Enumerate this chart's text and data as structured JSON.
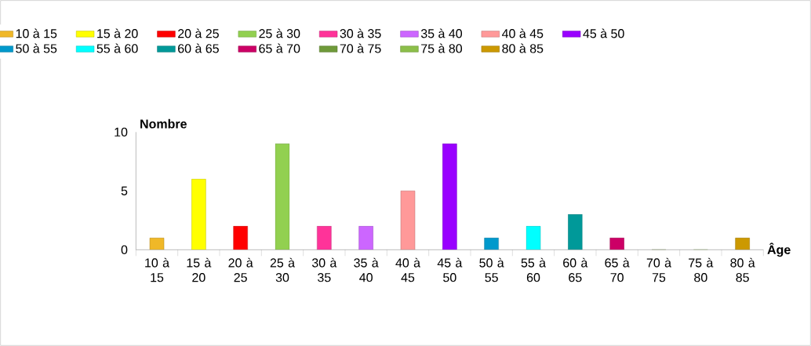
{
  "chart_data": {
    "type": "bar",
    "xlabel": "Âge",
    "ylabel": "Nombre",
    "categories": [
      "10 à 15",
      "15 à 20",
      "20 à 25",
      "25 à 30",
      "30 à 35",
      "35 à 40",
      "40 à 45",
      "45 à 50",
      "50 à 55",
      "55 à 60",
      "60 à 65",
      "65 à 70",
      "70 à 75",
      "75 à 80",
      "80 à 85"
    ],
    "series": [
      {
        "name": "10 à 15",
        "color": "#f0b828",
        "values": [
          1,
          null,
          null,
          null,
          null,
          null,
          null,
          null,
          null,
          null,
          null,
          null,
          null,
          null,
          null
        ]
      },
      {
        "name": "15 à 20",
        "color": "#ffff00",
        "values": [
          null,
          6,
          null,
          null,
          null,
          null,
          null,
          null,
          null,
          null,
          null,
          null,
          null,
          null,
          null
        ]
      },
      {
        "name": "20 à 25",
        "color": "#ff0000",
        "values": [
          null,
          null,
          2,
          null,
          null,
          null,
          null,
          null,
          null,
          null,
          null,
          null,
          null,
          null,
          null
        ]
      },
      {
        "name": "25 à 30",
        "color": "#92d050",
        "values": [
          null,
          null,
          null,
          9,
          null,
          null,
          null,
          null,
          null,
          null,
          null,
          null,
          null,
          null,
          null
        ]
      },
      {
        "name": "30 à 35",
        "color": "#ff3399",
        "values": [
          null,
          null,
          null,
          null,
          2,
          null,
          null,
          null,
          null,
          null,
          null,
          null,
          null,
          null,
          null
        ]
      },
      {
        "name": "35 à 40",
        "color": "#cc66ff",
        "values": [
          null,
          null,
          null,
          null,
          null,
          2,
          null,
          null,
          null,
          null,
          null,
          null,
          null,
          null,
          null
        ]
      },
      {
        "name": "40 à 45",
        "color": "#ff9999",
        "values": [
          null,
          null,
          null,
          null,
          null,
          null,
          5,
          null,
          null,
          null,
          null,
          null,
          null,
          null,
          null
        ]
      },
      {
        "name": "45 à 50",
        "color": "#9900ff",
        "values": [
          null,
          null,
          null,
          null,
          null,
          null,
          null,
          9,
          null,
          null,
          null,
          null,
          null,
          null,
          null
        ]
      },
      {
        "name": "50 à 55",
        "color": "#0099cc",
        "values": [
          null,
          null,
          null,
          null,
          null,
          null,
          null,
          null,
          1,
          null,
          null,
          null,
          null,
          null,
          null
        ]
      },
      {
        "name": "55 à 60",
        "color": "#00ffff",
        "values": [
          null,
          null,
          null,
          null,
          null,
          null,
          null,
          null,
          null,
          2,
          null,
          null,
          null,
          null,
          null
        ]
      },
      {
        "name": "60 à 65",
        "color": "#009999",
        "values": [
          null,
          null,
          null,
          null,
          null,
          null,
          null,
          null,
          null,
          null,
          3,
          null,
          null,
          null,
          null
        ]
      },
      {
        "name": "65 à 70",
        "color": "#cc0066",
        "values": [
          null,
          null,
          null,
          null,
          null,
          null,
          null,
          null,
          null,
          null,
          null,
          1,
          null,
          null,
          null
        ]
      },
      {
        "name": "70 à 75",
        "color": "#6f9a3a",
        "values": [
          null,
          null,
          null,
          null,
          null,
          null,
          null,
          null,
          null,
          null,
          null,
          null,
          0,
          null,
          null
        ]
      },
      {
        "name": "75 à 80",
        "color": "#8cbf4a",
        "values": [
          null,
          null,
          null,
          null,
          null,
          null,
          null,
          null,
          null,
          null,
          null,
          null,
          null,
          0,
          null
        ]
      },
      {
        "name": "80 à 85",
        "color": "#cc9900",
        "values": [
          null,
          null,
          null,
          null,
          null,
          null,
          null,
          null,
          null,
          null,
          null,
          null,
          null,
          null,
          1
        ]
      }
    ],
    "ylim": [
      0,
      10
    ],
    "yticks": [
      0,
      5,
      10
    ],
    "legend": "top"
  }
}
